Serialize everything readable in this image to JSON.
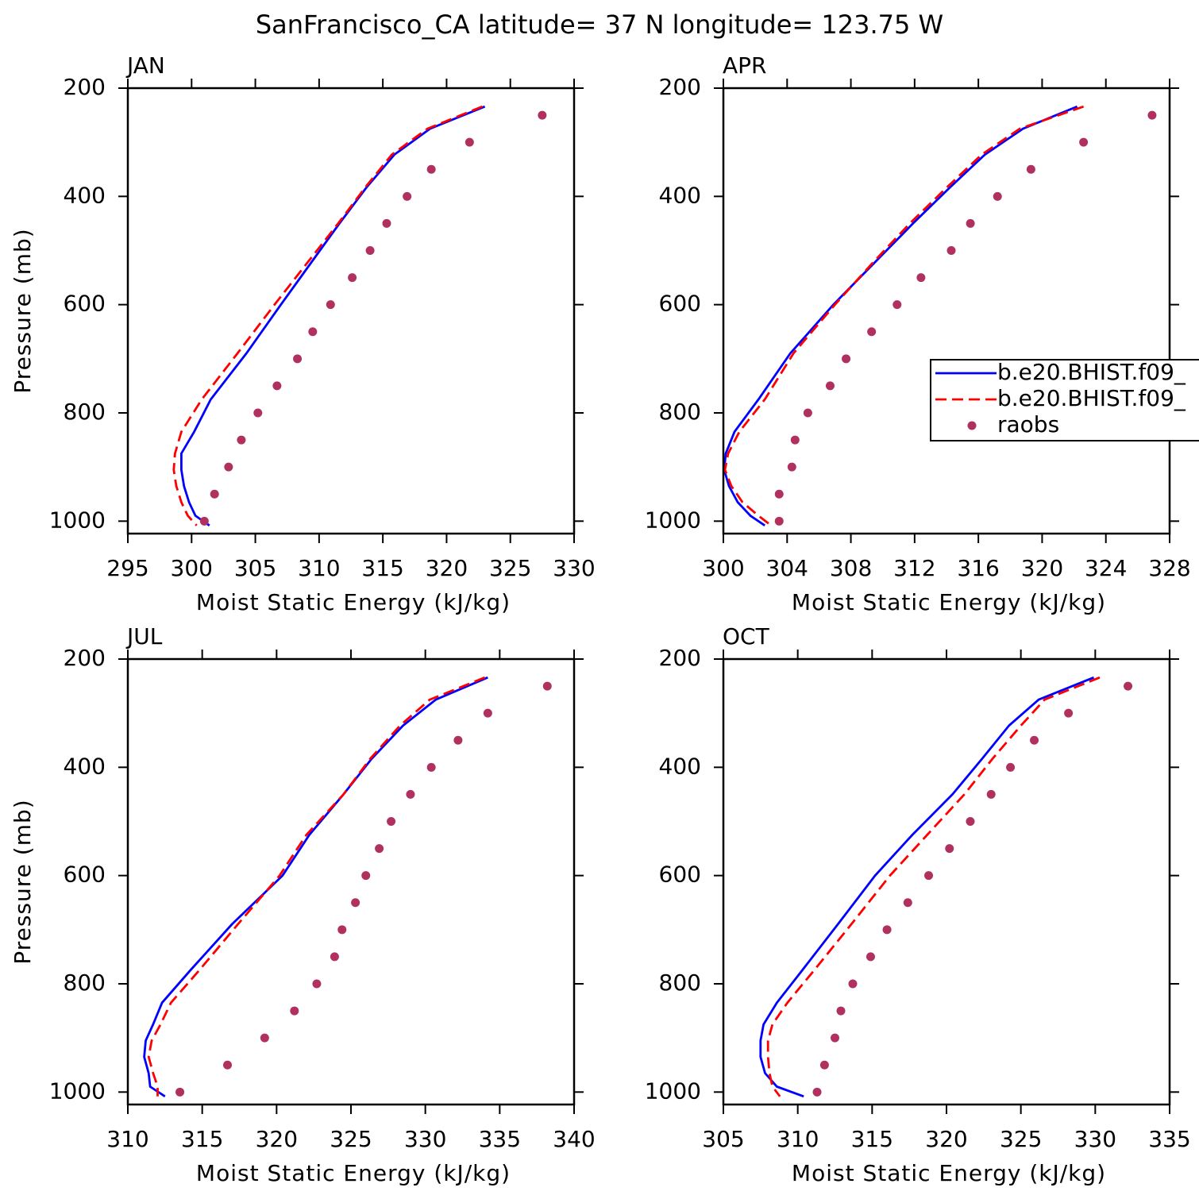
{
  "title": "SanFrancisco_CA  latitude= 37 N longitude= 123.75 W",
  "chart_data": [
    {
      "type": "line",
      "panel_title": "JAN",
      "xlabel": "Moist Static Energy (kJ/kg)",
      "ylabel": "Pressure (mb)",
      "xlim": [
        295,
        330
      ],
      "ylim": [
        1023,
        200
      ],
      "xticks": [
        295,
        300,
        305,
        310,
        315,
        320,
        325,
        330
      ],
      "yticks": [
        200,
        400,
        600,
        800,
        1000
      ],
      "series": [
        {
          "color": "#0000ff",
          "style": "solid",
          "x": [
            323.0,
            318.7,
            315.9,
            313.7,
            311.6,
            309.3,
            307.0,
            304.3,
            301.5,
            300.2,
            299.2,
            299.2,
            299.4,
            299.8,
            300.3,
            301.4
          ],
          "y": [
            234,
            275,
            323,
            384,
            450,
            525,
            600,
            690,
            775,
            835,
            875,
            905,
            935,
            965,
            990,
            1008
          ]
        },
        {
          "color": "#ff0000",
          "style": "dashed",
          "x": [
            322.8,
            318.5,
            315.7,
            313.6,
            311.5,
            309.0,
            306.5,
            303.6,
            300.8,
            299.2,
            298.7,
            298.6,
            298.8,
            299.2,
            299.7,
            300.4
          ],
          "y": [
            234,
            275,
            323,
            384,
            450,
            525,
            600,
            690,
            775,
            835,
            875,
            905,
            935,
            965,
            990,
            1008
          ]
        },
        {
          "color": "#b03060",
          "style": "dots",
          "x": [
            327.5,
            321.8,
            318.8,
            316.9,
            315.3,
            314.0,
            312.6,
            310.9,
            309.5,
            308.3,
            306.7,
            305.2,
            303.9,
            302.9,
            301.8,
            301.0
          ],
          "y": [
            250,
            300,
            350,
            400,
            450,
            500,
            550,
            600,
            650,
            700,
            750,
            800,
            850,
            900,
            950,
            1000
          ]
        }
      ]
    },
    {
      "type": "line",
      "panel_title": "APR",
      "xlabel": "Moist Static Energy (kJ/kg)",
      "xlim": [
        300,
        328
      ],
      "ylim": [
        1023,
        200
      ],
      "xticks": [
        300,
        304,
        308,
        312,
        316,
        320,
        324,
        328
      ],
      "yticks": [
        200,
        400,
        600,
        800,
        1000
      ],
      "legend": "right",
      "series": [
        {
          "name": "b.e20.BHIST.f09_",
          "color": "#0000ff",
          "style": "solid",
          "x": [
            322.2,
            318.8,
            316.4,
            314.2,
            311.9,
            309.4,
            306.9,
            304.2,
            302.2,
            300.7,
            300.15,
            300.05,
            300.35,
            300.9,
            301.7,
            302.6
          ],
          "y": [
            234,
            275,
            323,
            384,
            450,
            525,
            600,
            690,
            775,
            835,
            875,
            905,
            935,
            965,
            990,
            1008
          ]
        },
        {
          "name": "b.e20.BHIST.f09_",
          "color": "#ff0000",
          "style": "dashed",
          "x": [
            322.6,
            318.6,
            316.2,
            314.0,
            311.7,
            309.3,
            307.0,
            304.4,
            302.6,
            301.0,
            300.3,
            300.1,
            300.5,
            301.2,
            302.2,
            303.0
          ],
          "y": [
            234,
            275,
            323,
            384,
            450,
            525,
            600,
            690,
            775,
            835,
            875,
            905,
            935,
            965,
            990,
            1008
          ]
        },
        {
          "name": "raobs",
          "color": "#b03060",
          "style": "dots",
          "x": [
            326.9,
            322.6,
            319.3,
            317.2,
            315.5,
            314.3,
            312.4,
            310.9,
            309.3,
            307.7,
            306.7,
            305.3,
            304.5,
            304.3,
            303.5,
            303.5
          ],
          "y": [
            250,
            300,
            350,
            400,
            450,
            500,
            550,
            600,
            650,
            700,
            750,
            800,
            850,
            900,
            950,
            1000
          ]
        }
      ]
    },
    {
      "type": "line",
      "panel_title": "JUL",
      "xlabel": "Moist Static Energy (kJ/kg)",
      "ylabel": "Pressure (mb)",
      "xlim": [
        310,
        340
      ],
      "ylim": [
        1023,
        200
      ],
      "xticks": [
        310,
        315,
        320,
        325,
        330,
        335,
        340
      ],
      "yticks": [
        200,
        400,
        600,
        800,
        1000
      ],
      "series": [
        {
          "color": "#0000ff",
          "style": "solid",
          "x": [
            334.2,
            330.7,
            328.5,
            326.4,
            324.5,
            322.2,
            320.4,
            317.0,
            314.2,
            312.3,
            311.7,
            311.2,
            311.1,
            311.4,
            311.5,
            312.5
          ],
          "y": [
            234,
            275,
            323,
            384,
            450,
            525,
            600,
            690,
            775,
            835,
            875,
            905,
            935,
            965,
            990,
            1008
          ]
        },
        {
          "color": "#ff0000",
          "style": "dashed",
          "x": [
            334.0,
            330.3,
            328.3,
            326.3,
            324.5,
            322.0,
            320.2,
            317.4,
            314.8,
            312.9,
            312.2,
            311.6,
            311.4,
            311.7,
            312.0,
            312.0
          ],
          "y": [
            234,
            275,
            323,
            384,
            450,
            525,
            600,
            690,
            775,
            835,
            875,
            905,
            935,
            965,
            990,
            1008
          ]
        },
        {
          "color": "#b03060",
          "style": "dots",
          "x": [
            338.2,
            334.2,
            332.2,
            330.4,
            329.0,
            327.7,
            326.9,
            326.0,
            325.3,
            324.4,
            323.9,
            322.7,
            321.2,
            319.2,
            316.7,
            313.5
          ],
          "y": [
            250,
            300,
            350,
            400,
            450,
            500,
            550,
            600,
            650,
            700,
            750,
            800,
            850,
            900,
            950,
            1000
          ]
        }
      ]
    },
    {
      "type": "line",
      "panel_title": "OCT",
      "xlabel": "Moist Static Energy (kJ/kg)",
      "xlim": [
        305,
        335
      ],
      "ylim": [
        1023,
        200
      ],
      "xticks": [
        305,
        310,
        315,
        320,
        325,
        330,
        335
      ],
      "yticks": [
        200,
        400,
        600,
        800,
        1000
      ],
      "series": [
        {
          "color": "#0000ff",
          "style": "solid",
          "x": [
            329.9,
            326.2,
            324.2,
            322.4,
            320.4,
            317.7,
            315.2,
            312.7,
            310.3,
            308.6,
            307.7,
            307.5,
            307.5,
            307.8,
            308.6,
            310.4
          ],
          "y": [
            234,
            275,
            323,
            384,
            450,
            525,
            600,
            690,
            775,
            835,
            875,
            905,
            935,
            965,
            990,
            1008
          ]
        },
        {
          "color": "#ff0000",
          "style": "dashed",
          "x": [
            330.3,
            326.6,
            325.0,
            323.1,
            321.2,
            318.7,
            316.2,
            313.6,
            311.1,
            309.3,
            308.3,
            308.0,
            308.0,
            308.1,
            308.3,
            308.8
          ],
          "y": [
            234,
            275,
            323,
            384,
            450,
            525,
            600,
            690,
            775,
            835,
            875,
            905,
            935,
            965,
            990,
            1008
          ]
        },
        {
          "color": "#b03060",
          "style": "dots",
          "x": [
            332.2,
            328.2,
            325.9,
            324.3,
            323.0,
            321.6,
            320.2,
            318.8,
            317.4,
            316.0,
            314.9,
            313.7,
            312.9,
            312.5,
            311.8,
            311.3
          ],
          "y": [
            250,
            300,
            350,
            400,
            450,
            500,
            550,
            600,
            650,
            700,
            750,
            800,
            850,
            900,
            950,
            1000
          ]
        }
      ]
    }
  ]
}
